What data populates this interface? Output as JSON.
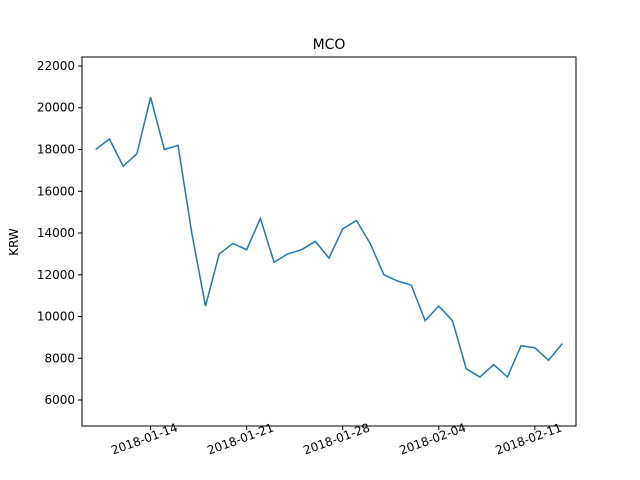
{
  "chart_data": {
    "type": "line",
    "title": "MCO",
    "y_label": "KRW",
    "x": [
      "2018-01-10",
      "2018-01-11",
      "2018-01-12",
      "2018-01-13",
      "2018-01-14",
      "2018-01-15",
      "2018-01-16",
      "2018-01-17",
      "2018-01-18",
      "2018-01-19",
      "2018-01-20",
      "2018-01-21",
      "2018-01-22",
      "2018-01-23",
      "2018-01-24",
      "2018-01-25",
      "2018-01-26",
      "2018-01-27",
      "2018-01-28",
      "2018-01-29",
      "2018-01-30",
      "2018-01-31",
      "2018-02-01",
      "2018-02-02",
      "2018-02-03",
      "2018-02-04",
      "2018-02-05",
      "2018-02-06",
      "2018-02-07",
      "2018-02-08",
      "2018-02-09",
      "2018-02-10",
      "2018-02-11",
      "2018-02-12",
      "2018-02-13"
    ],
    "series": [
      {
        "name": "MCO",
        "color": "#1f77b4",
        "values": [
          18000,
          18500,
          17200,
          17800,
          20500,
          18000,
          18200,
          14000,
          10500,
          13000,
          13500,
          13200,
          14700,
          12600,
          13000,
          13200,
          13600,
          12800,
          14200,
          14600,
          13500,
          12000,
          11700,
          11500,
          9800,
          10500,
          9800,
          7500,
          7100,
          7700,
          7100,
          8600,
          8500,
          7900,
          8700
        ]
      }
    ],
    "xlim": [
      "2018-01-09",
      "2018-02-14"
    ],
    "xticks": [
      "2018-01-14",
      "2018-01-21",
      "2018-01-28",
      "2018-02-04",
      "2018-02-11"
    ],
    "ylim": [
      4755,
      22431
    ],
    "yticks": [
      6000,
      8000,
      10000,
      12000,
      14000,
      16000,
      18000,
      20000,
      22000
    ]
  }
}
